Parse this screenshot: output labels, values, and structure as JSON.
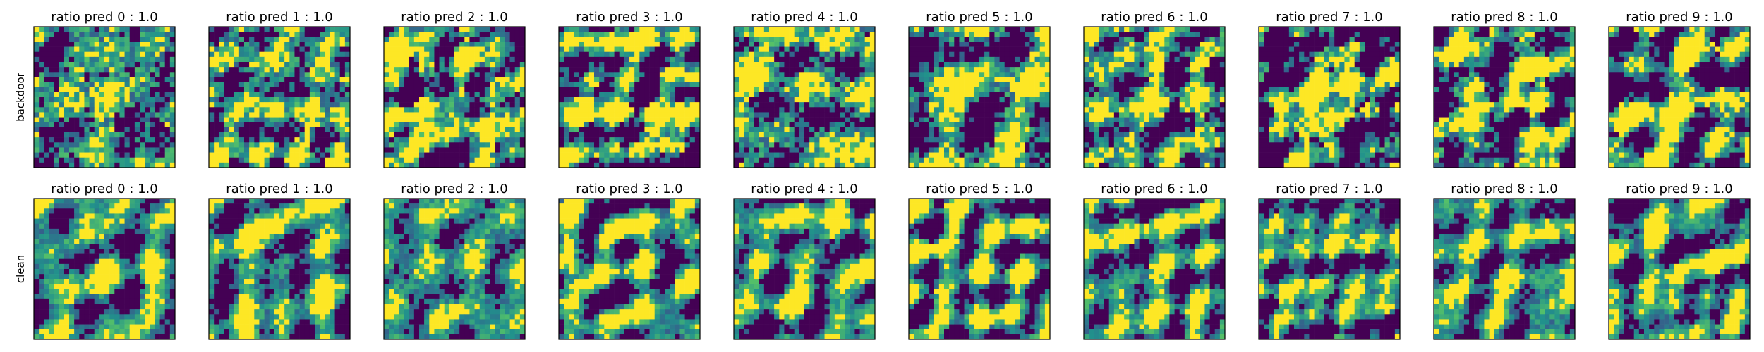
{
  "chart_data": {
    "type": "heatmap",
    "colormap": "viridis",
    "grid_size": 28,
    "axis_ticks": false,
    "colors": {
      "low": "#440154",
      "mid_low": "#3b528b",
      "mid": "#21918c",
      "mid_high": "#5ec962",
      "high": "#fde725"
    },
    "rows": [
      {
        "label": "backdoor",
        "panels": [
          {
            "title": "ratio pred 0 :  1.0"
          },
          {
            "title": "ratio pred 1 :  1.0"
          },
          {
            "title": "ratio pred 2 :  1.0"
          },
          {
            "title": "ratio pred 3 :  1.0"
          },
          {
            "title": "ratio pred 4 :  1.0"
          },
          {
            "title": "ratio pred 5 :  1.0"
          },
          {
            "title": "ratio pred 6 :  1.0"
          },
          {
            "title": "ratio pred 7 :  1.0"
          },
          {
            "title": "ratio pred 8 :  1.0"
          },
          {
            "title": "ratio pred 9 :  1.0"
          }
        ]
      },
      {
        "label": "clean",
        "panels": [
          {
            "title": "ratio pred 0 :  1.0"
          },
          {
            "title": "ratio pred 1 :  1.0"
          },
          {
            "title": "ratio pred 2 :  1.0"
          },
          {
            "title": "ratio pred 3 :  1.0"
          },
          {
            "title": "ratio pred 4 :  1.0"
          },
          {
            "title": "ratio pred 5 :  1.0"
          },
          {
            "title": "ratio pred 6 :  1.0"
          },
          {
            "title": "ratio pred 7 :  1.0"
          },
          {
            "title": "ratio pred 8 :  1.0"
          },
          {
            "title": "ratio pred 9 :  1.0"
          }
        ]
      }
    ]
  }
}
